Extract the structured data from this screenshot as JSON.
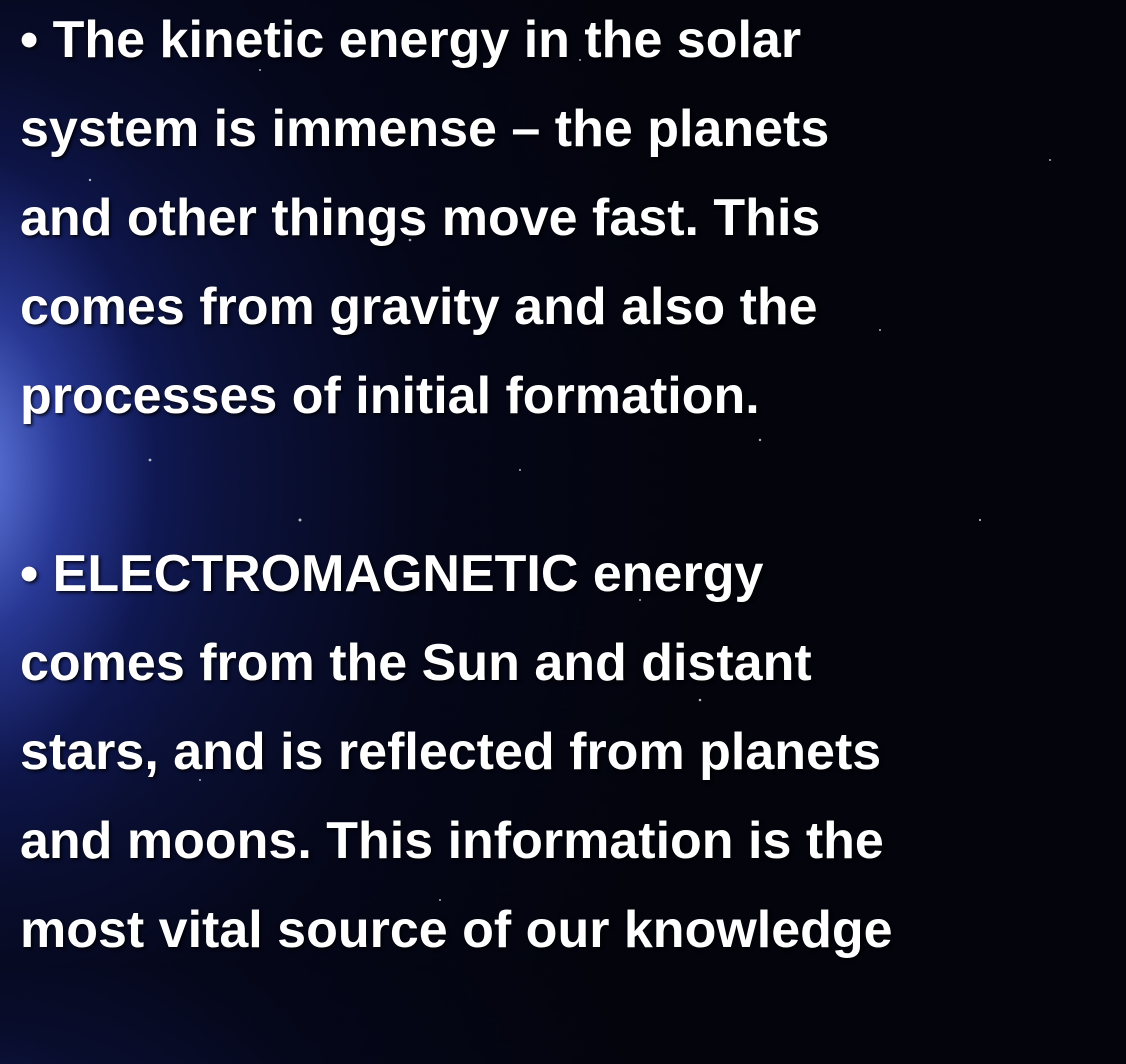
{
  "paragraphs": [
    {
      "lines": [
        "• The kinetic energy in the solar",
        "system is immense – the planets",
        "and other things move fast. This",
        "comes from gravity and also the",
        "processes of initial formation."
      ]
    },
    {
      "lines": [
        "• ELECTROMAGNETIC energy",
        "comes from the Sun and distant",
        "stars, and is reflected from planets",
        "and moons. This information is the",
        "most vital source of our knowledge"
      ]
    }
  ]
}
